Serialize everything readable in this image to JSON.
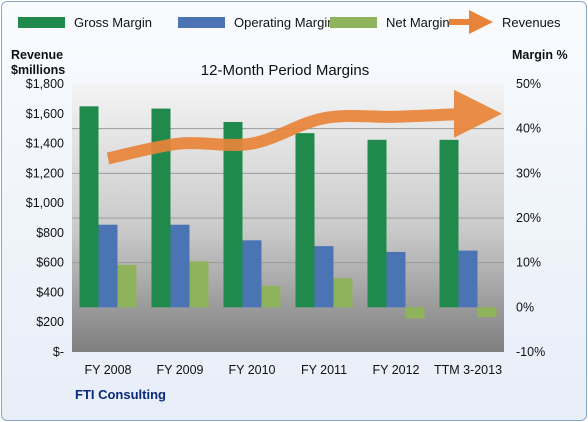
{
  "chart_data": {
    "type": "bar",
    "title": "12-Month Period Margins",
    "company": "FTI Consulting",
    "categories": [
      "FY 2008",
      "FY 2009",
      "FY 2010",
      "FY 2011",
      "FY 2012",
      "TTM 3-2013"
    ],
    "left_axis": {
      "title_line1": "Revenue",
      "title_line2": "$millions",
      "ylim": [
        0,
        1800
      ],
      "ticks": [
        {
          "v": 0,
          "label": "$-"
        },
        {
          "v": 200,
          "label": "$200"
        },
        {
          "v": 400,
          "label": "$400"
        },
        {
          "v": 600,
          "label": "$600"
        },
        {
          "v": 800,
          "label": "$800"
        },
        {
          "v": 1000,
          "label": "$1,000"
        },
        {
          "v": 1200,
          "label": "$1,200"
        },
        {
          "v": 1400,
          "label": "$1,400"
        },
        {
          "v": 1600,
          "label": "$1,600"
        },
        {
          "v": 1800,
          "label": "$1,800"
        }
      ]
    },
    "right_axis": {
      "title": "Margin %",
      "ylim": [
        -10,
        50
      ],
      "ticks": [
        {
          "v": -10,
          "label": "-10%"
        },
        {
          "v": 0,
          "label": "0%"
        },
        {
          "v": 10,
          "label": "10%"
        },
        {
          "v": 20,
          "label": "20%"
        },
        {
          "v": 30,
          "label": "30%"
        },
        {
          "v": 40,
          "label": "40%"
        },
        {
          "v": 50,
          "label": "50%"
        }
      ]
    },
    "series": [
      {
        "name": "Gross Margin",
        "type": "bar",
        "axis": "right",
        "color": "#1f8a4c",
        "values": [
          45,
          44.5,
          41.5,
          39,
          37.5,
          37.5
        ]
      },
      {
        "name": "Operating Margin",
        "type": "bar",
        "axis": "right",
        "color": "#4a74b4",
        "values": [
          18.5,
          18.5,
          15,
          13.7,
          12.4,
          12.7
        ]
      },
      {
        "name": "Net Margin",
        "type": "bar",
        "axis": "right",
        "color": "#8fb35a",
        "values": [
          9.5,
          10.3,
          4.8,
          6.5,
          -2.5,
          -2.2
        ]
      },
      {
        "name": "Revenues",
        "type": "line",
        "axis": "left",
        "color": "#e8843a",
        "values": [
          1300,
          1400,
          1400,
          1570,
          1580,
          1600
        ]
      }
    ],
    "grid": true,
    "legend": "top"
  }
}
